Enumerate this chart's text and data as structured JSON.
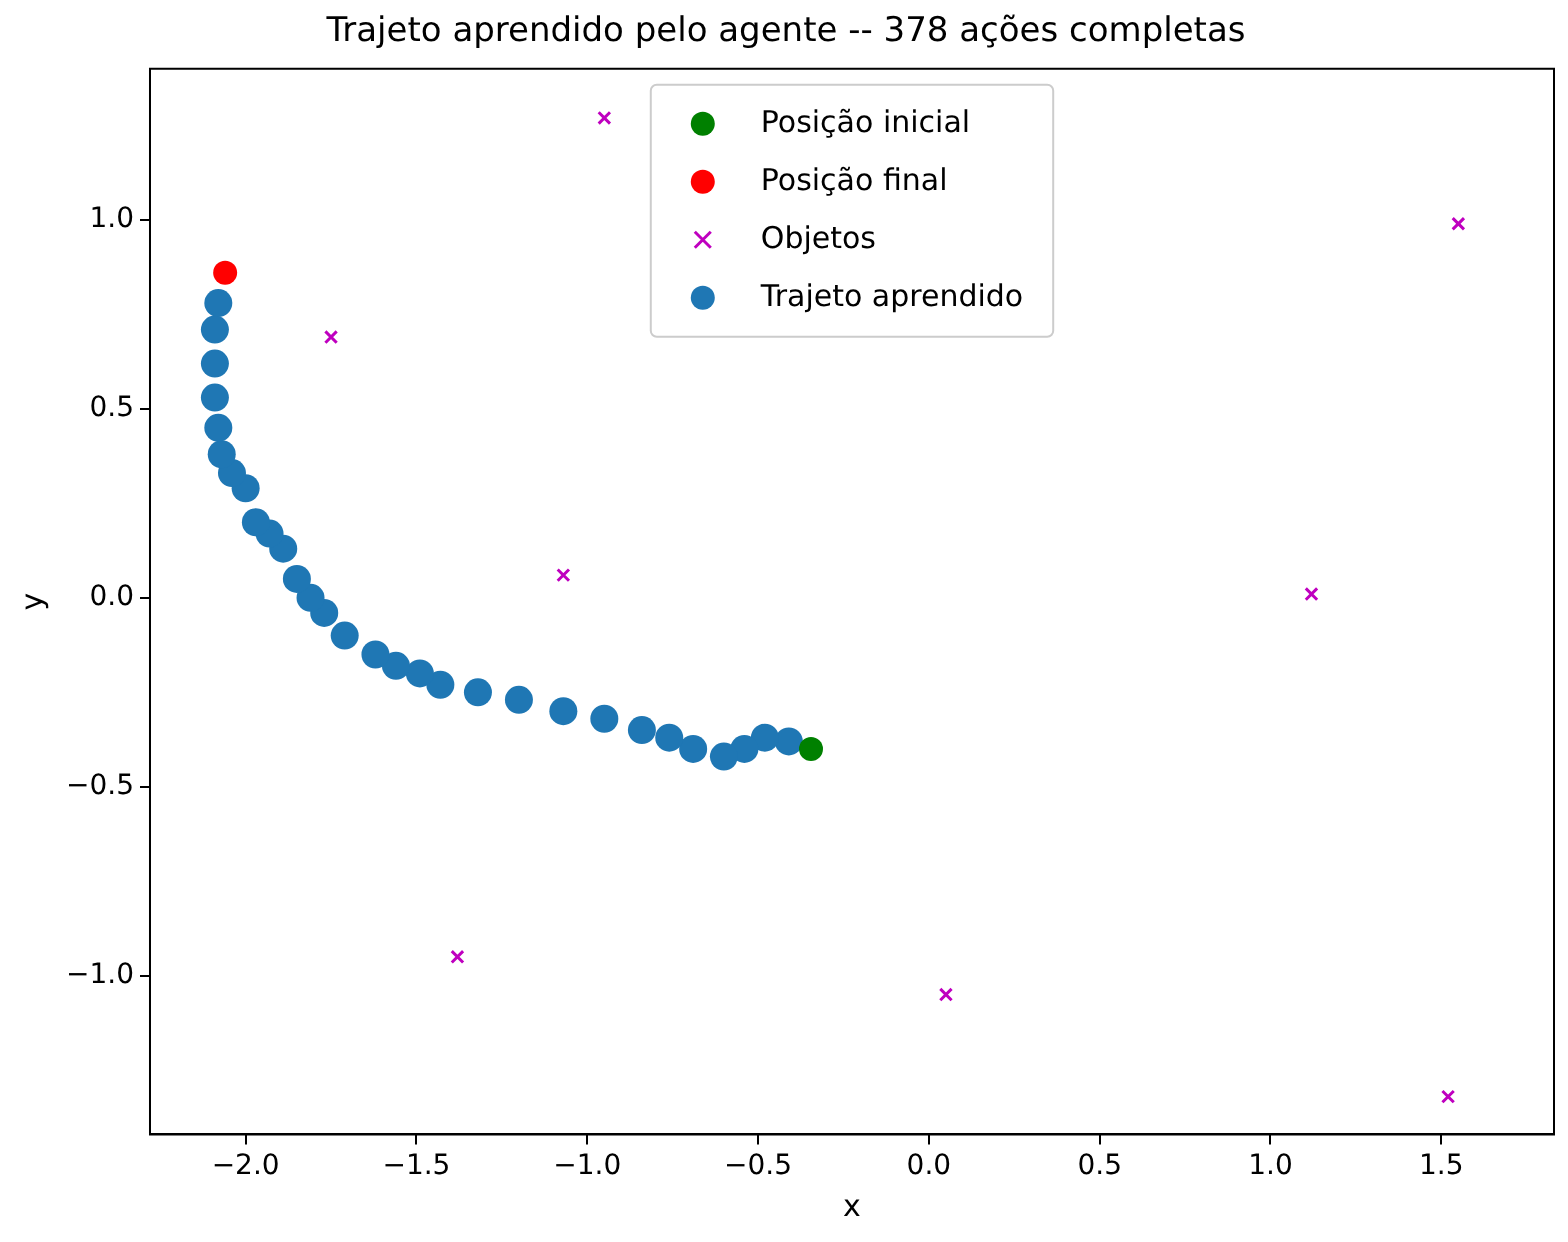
{
  "chart_data": {
    "type": "scatter",
    "title": "Trajeto aprendido pelo agente -- 378 ações completas",
    "xlabel": "x",
    "ylabel": "y",
    "xlim": [
      -2.28,
      1.83
    ],
    "ylim": [
      -1.42,
      1.4
    ],
    "xticks": [
      {
        "value": -2,
        "label": "−2.0"
      },
      {
        "value": -1.5,
        "label": "−1.5"
      },
      {
        "value": -1,
        "label": "−1.0"
      },
      {
        "value": -0.5,
        "label": "−0.5"
      },
      {
        "value": 0,
        "label": "0.0"
      },
      {
        "value": 0.5,
        "label": "0.5"
      },
      {
        "value": 1,
        "label": "1.0"
      },
      {
        "value": 1.5,
        "label": "1.5"
      }
    ],
    "yticks": [
      {
        "value": -1,
        "label": "−1.0"
      },
      {
        "value": -0.5,
        "label": "−0.5"
      },
      {
        "value": 0,
        "label": "0.0"
      },
      {
        "value": 0.5,
        "label": "0.5"
      },
      {
        "value": 1,
        "label": "1.0"
      }
    ],
    "grid": false,
    "legend": "top",
    "series": [
      {
        "name": "Posição inicial",
        "color": "#008000",
        "marker": "circle",
        "x": [
          -0.345
        ],
        "values": [
          -0.4
        ]
      },
      {
        "name": "Posição final",
        "color": "#ff0000",
        "marker": "circle",
        "x": [
          -2.06
        ],
        "values": [
          0.86
        ]
      },
      {
        "name": "Objetos",
        "color": "#bf00bf",
        "marker": "cross",
        "x": [
          -0.95,
          1.55,
          -1.75,
          -1.07,
          1.12,
          -1.38,
          0.05,
          1.52
        ],
        "values": [
          1.27,
          0.99,
          0.69,
          0.06,
          0.01,
          -0.95,
          -1.05,
          -1.32
        ]
      },
      {
        "name": "Trajeto aprendido",
        "color": "#1f77b4",
        "marker": "circle",
        "x": [
          -0.41,
          -0.48,
          -0.54,
          -0.6,
          -0.69,
          -0.76,
          -0.84,
          -0.95,
          -1.07,
          -1.2,
          -1.32,
          -1.43,
          -1.49,
          -1.56,
          -1.62,
          -1.71,
          -1.77,
          -1.81,
          -1.85,
          -1.89,
          -1.93,
          -1.97,
          -2.0,
          -2.04,
          -2.07,
          -2.08,
          -2.09,
          -2.09,
          -2.09,
          -2.08
        ],
        "values": [
          -0.38,
          -0.37,
          -0.4,
          -0.42,
          -0.4,
          -0.37,
          -0.35,
          -0.32,
          -0.3,
          -0.27,
          -0.25,
          -0.23,
          -0.2,
          -0.18,
          -0.15,
          -0.1,
          -0.04,
          0.0,
          0.05,
          0.13,
          0.17,
          0.2,
          0.29,
          0.33,
          0.38,
          0.45,
          0.53,
          0.62,
          0.71,
          0.78
        ]
      }
    ]
  }
}
